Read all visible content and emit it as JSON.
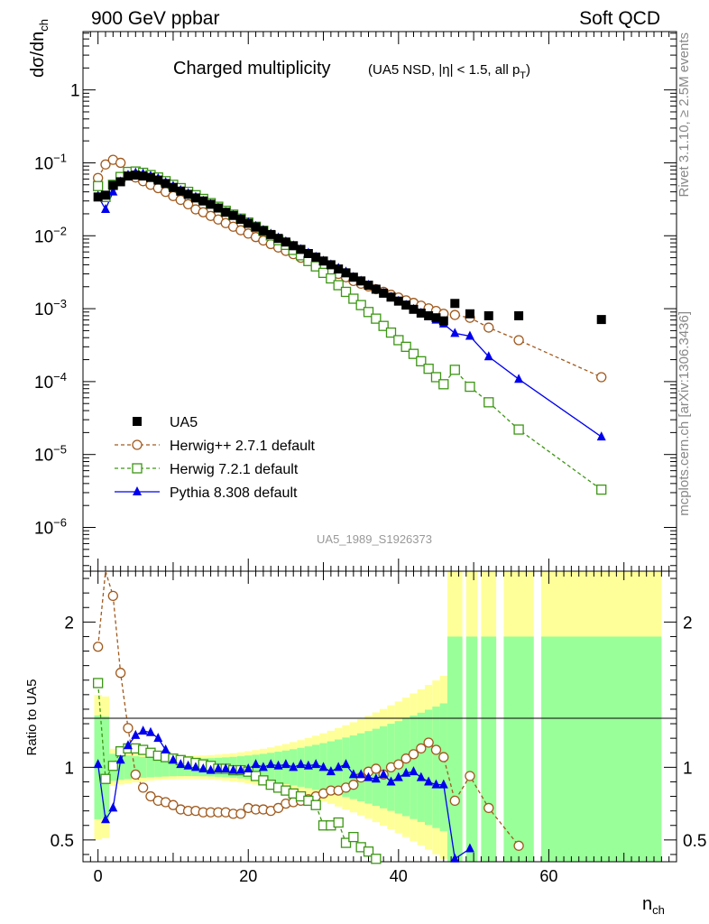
{
  "header": {
    "left": "900 GeV ppbar",
    "right": "Soft QCD"
  },
  "chart_data": {
    "type": "scatter",
    "title": "Charged multiplicity",
    "subtitle": "(UA5 NSD, |η| < 1.5, all p",
    "subtitle_sub": "T",
    "subtitle_end": ")",
    "ylabel": "dσ/dn",
    "ylabel_sub": "ch",
    "xlabel": "n",
    "xlabel_sub": "ch",
    "ratio_ylabel": "Ratio to UA5",
    "analysis_id": "UA5_1989_S1926373",
    "side_text_1": "Rivet 3.1.10, ≥ 2.5M events",
    "side_text_2": "mcplots.cern.ch [arXiv:1306.3436]",
    "xlim": [
      -2,
      77
    ],
    "ylim_log": [
      -6.6,
      0.8
    ],
    "ratio_ylim": [
      0.35,
      2.35
    ],
    "x_ticks": [
      0,
      20,
      40,
      60
    ],
    "y_tick_labels": [
      {
        "exp": 0,
        "text": "1",
        "sup": ""
      },
      {
        "exp": -1,
        "text": "10",
        "sup": "−1"
      },
      {
        "exp": -2,
        "text": "10",
        "sup": "−2"
      },
      {
        "exp": -3,
        "text": "10",
        "sup": "−3"
      },
      {
        "exp": -4,
        "text": "10",
        "sup": "−4"
      },
      {
        "exp": -5,
        "text": "10",
        "sup": "−5"
      },
      {
        "exp": -6,
        "text": "10",
        "sup": "−6"
      }
    ],
    "ratio_ticks": [
      {
        "value": 0.5,
        "label": "0.5"
      },
      {
        "value": 1,
        "label": "1"
      },
      {
        "value": 2,
        "label": "2"
      }
    ],
    "legend": [
      {
        "label": "UA5",
        "color": "#000000",
        "marker": "square-filled",
        "dash": ""
      },
      {
        "label": "Herwig++ 2.7.1 default",
        "color": "#a05a1e",
        "marker": "circle-open",
        "dash": "4,3"
      },
      {
        "label": "Herwig 7.2.1 default",
        "color": "#3c9614",
        "marker": "square-open",
        "dash": "4,3"
      },
      {
        "label": "Pythia 8.308 default",
        "color": "#0000ee",
        "marker": "triangle-filled",
        "dash": ""
      }
    ],
    "data": {
      "name": "UA5",
      "x": [
        0,
        1,
        2,
        3,
        4,
        5,
        6,
        7,
        8,
        9,
        10,
        11,
        12,
        13,
        14,
        15,
        16,
        17,
        18,
        19,
        20,
        21,
        22,
        23,
        24,
        25,
        26,
        27,
        28,
        29,
        30,
        31,
        32,
        33,
        34,
        35,
        36,
        37,
        38,
        39,
        40,
        41,
        42,
        43,
        44,
        45,
        46,
        47.5,
        49.5,
        52,
        56,
        67
      ],
      "y": [
        0.034,
        0.036,
        0.049,
        0.055,
        0.066,
        0.068,
        0.066,
        0.063,
        0.058,
        0.052,
        0.046,
        0.041,
        0.037,
        0.033,
        0.03,
        0.027,
        0.024,
        0.021,
        0.019,
        0.0168,
        0.0148,
        0.0132,
        0.0117,
        0.0104,
        0.0092,
        0.0082,
        0.0073,
        0.0065,
        0.0057,
        0.0051,
        0.0045,
        0.004,
        0.0035,
        0.0031,
        0.0027,
        0.0024,
        0.0021,
        0.00185,
        0.00163,
        0.00144,
        0.00127,
        0.00112,
        0.00098,
        0.00087,
        0.0008,
        0.00075,
        0.00068,
        0.00118,
        0.00085,
        0.0008,
        0.0008,
        0.00071
      ]
    },
    "series": [
      {
        "name": "Herwig++ 2.7.1 default",
        "x": [
          0,
          1,
          2,
          3,
          4,
          5,
          6,
          7,
          8,
          9,
          10,
          11,
          12,
          13,
          14,
          15,
          16,
          17,
          18,
          19,
          20,
          21,
          22,
          23,
          24,
          25,
          26,
          27,
          28,
          29,
          30,
          31,
          32,
          33,
          34,
          35,
          36,
          37,
          38,
          39,
          40,
          41,
          42,
          43,
          44,
          45,
          46,
          47.5,
          49.5,
          52,
          56,
          67
        ],
        "y": [
          0.062,
          0.095,
          0.11,
          0.1,
          0.075,
          0.063,
          0.056,
          0.05,
          0.045,
          0.04,
          0.035,
          0.031,
          0.027,
          0.023,
          0.021,
          0.0187,
          0.0167,
          0.0149,
          0.0133,
          0.0119,
          0.0107,
          0.0096,
          0.0086,
          0.0077,
          0.0069,
          0.0062,
          0.0056,
          0.005,
          0.0045,
          0.004,
          0.0036,
          0.0033,
          0.003,
          0.0027,
          0.0024,
          0.0022,
          0.00202,
          0.00185,
          0.0017,
          0.00155,
          0.00142,
          0.0013,
          0.0012,
          0.0011,
          0.00101,
          0.00093,
          0.00085,
          0.00082,
          0.00075,
          0.00055,
          0.00037,
          0.000115
        ]
      },
      {
        "name": "Herwig 7.2.1 default",
        "x": [
          0,
          1,
          2,
          3,
          4,
          5,
          6,
          7,
          8,
          9,
          10,
          11,
          12,
          13,
          14,
          15,
          16,
          17,
          18,
          19,
          20,
          21,
          22,
          23,
          24,
          25,
          26,
          27,
          28,
          29,
          30,
          31,
          32,
          33,
          34,
          35,
          36,
          37,
          38,
          39,
          40,
          41,
          42,
          43,
          44,
          45,
          46,
          47.5,
          49.5,
          52,
          56,
          67
        ],
        "y": [
          0.048,
          0.034,
          0.05,
          0.064,
          0.075,
          0.076,
          0.073,
          0.068,
          0.063,
          0.056,
          0.05,
          0.045,
          0.04,
          0.036,
          0.032,
          0.028,
          0.025,
          0.022,
          0.0195,
          0.0172,
          0.0152,
          0.0133,
          0.0117,
          0.0101,
          0.0087,
          0.0075,
          0.0064,
          0.0054,
          0.0045,
          0.0038,
          0.0031,
          0.0026,
          0.0021,
          0.0017,
          0.00137,
          0.00112,
          0.0009,
          0.00073,
          0.00058,
          0.00047,
          0.00037,
          0.0003,
          0.00024,
          0.00019,
          0.00015,
          0.000115,
          9.2e-05,
          0.000145,
          8.5e-05,
          5.2e-05,
          2.2e-05,
          3.3e-06
        ]
      },
      {
        "name": "Pythia 8.308 default",
        "x": [
          0,
          1,
          2,
          3,
          4,
          5,
          6,
          7,
          8,
          9,
          10,
          11,
          12,
          13,
          14,
          15,
          16,
          17,
          18,
          19,
          20,
          21,
          22,
          23,
          24,
          25,
          26,
          27,
          28,
          29,
          30,
          31,
          32,
          33,
          34,
          35,
          36,
          37,
          38,
          39,
          40,
          41,
          42,
          43,
          44,
          45,
          46,
          47.5,
          49.5,
          52,
          56,
          67
        ],
        "y": [
          0.035,
          0.023,
          0.04,
          0.055,
          0.068,
          0.073,
          0.071,
          0.066,
          0.061,
          0.054,
          0.048,
          0.042,
          0.038,
          0.034,
          0.03,
          0.027,
          0.024,
          0.021,
          0.019,
          0.017,
          0.0152,
          0.0135,
          0.0119,
          0.0106,
          0.0094,
          0.0083,
          0.0073,
          0.0065,
          0.0058,
          0.0051,
          0.0045,
          0.004,
          0.0036,
          0.0032,
          0.0027,
          0.0024,
          0.0021,
          0.00185,
          0.00163,
          0.00144,
          0.00127,
          0.00112,
          0.00098,
          0.00087,
          0.00078,
          0.0007,
          0.00062,
          0.00046,
          0.00042,
          0.00022,
          0.000108,
          1.75e-05
        ]
      }
    ],
    "ratio_series": [
      {
        "name": "Herwig++ 2.7.1 default",
        "x": [
          0,
          1,
          2,
          3,
          4,
          5,
          6,
          7,
          8,
          9,
          10,
          11,
          12,
          13,
          14,
          15,
          16,
          17,
          18,
          19,
          20,
          21,
          22,
          23,
          24,
          25,
          26,
          27,
          28,
          29,
          30,
          31,
          32,
          33,
          34,
          35,
          36,
          37,
          38,
          39,
          40,
          41,
          42,
          43,
          44,
          45,
          46,
          47.5,
          49.5,
          52,
          56
        ],
        "y": [
          1.83,
          2.35,
          2.18,
          1.65,
          1.27,
          0.95,
          0.86,
          0.8,
          0.77,
          0.76,
          0.74,
          0.71,
          0.7,
          0.7,
          0.69,
          0.69,
          0.69,
          0.69,
          0.68,
          0.68,
          0.72,
          0.71,
          0.71,
          0.7,
          0.72,
          0.75,
          0.76,
          0.77,
          0.78,
          0.8,
          0.82,
          0.84,
          0.84,
          0.86,
          0.88,
          0.93,
          0.97,
          0.99,
          0.95,
          1.0,
          1.02,
          1.06,
          1.09,
          1.13,
          1.17,
          1.12,
          1.07,
          0.77,
          0.94,
          0.72,
          0.46
        ]
      },
      {
        "name": "Herwig 7.2.1 default",
        "x": [
          0,
          1,
          2,
          3,
          4,
          5,
          6,
          7,
          8,
          9,
          10,
          11,
          12,
          13,
          14,
          15,
          16,
          17,
          18,
          19,
          20,
          21,
          22,
          23,
          24,
          25,
          26,
          27,
          28,
          29,
          30,
          31,
          32,
          33,
          34,
          35,
          36,
          37
        ],
        "y": [
          1.58,
          0.92,
          1.01,
          1.11,
          1.13,
          1.13,
          1.12,
          1.1,
          1.08,
          1.07,
          1.06,
          1.05,
          1.04,
          1.03,
          1.02,
          1.01,
          0.99,
          0.99,
          0.98,
          0.98,
          0.97,
          0.94,
          0.91,
          0.88,
          0.86,
          0.84,
          0.82,
          0.8,
          0.77,
          0.74,
          0.6,
          0.6,
          0.62,
          0.48,
          0.52,
          0.45,
          0.42,
          0.37
        ]
      },
      {
        "name": "Pythia 8.308 default",
        "x": [
          0,
          1,
          2,
          3,
          4,
          5,
          6,
          7,
          8,
          9,
          10,
          11,
          12,
          13,
          14,
          15,
          16,
          17,
          18,
          19,
          20,
          21,
          22,
          23,
          24,
          25,
          26,
          27,
          28,
          29,
          30,
          31,
          32,
          33,
          34,
          35,
          36,
          37,
          38,
          39,
          40,
          41,
          42,
          43,
          44,
          45,
          46,
          47.5,
          49.5
        ],
        "y": [
          1.02,
          0.64,
          0.72,
          1.05,
          1.15,
          1.22,
          1.25,
          1.24,
          1.2,
          1.12,
          1.05,
          1.02,
          1.01,
          1.0,
          0.99,
          0.98,
          0.99,
          0.99,
          0.98,
          0.98,
          0.99,
          1.02,
          1.0,
          1.02,
          1.01,
          1.02,
          1.0,
          1.02,
          1.01,
          1.02,
          1.0,
          0.97,
          1.0,
          1.02,
          0.95,
          0.95,
          0.93,
          0.92,
          0.95,
          0.9,
          0.93,
          0.96,
          0.97,
          0.93,
          0.9,
          0.88,
          0.88,
          0.37,
          0.44
        ]
      }
    ]
  }
}
